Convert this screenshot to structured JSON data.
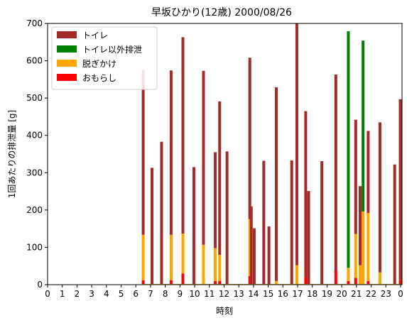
{
  "chart_data": {
    "type": "bar",
    "stacked": true,
    "title": "早坂ひかり(12歳) 2000/08/26",
    "xlabel": "時刻",
    "ylabel": "1回あたりの排泄量 [g]",
    "xlim": [
      0,
      24.1
    ],
    "ylim": [
      0,
      700
    ],
    "xticks": [
      0,
      1,
      2,
      3,
      4,
      5,
      6,
      7,
      8,
      9,
      10,
      11,
      12,
      13,
      14,
      15,
      16,
      17,
      18,
      19,
      20,
      21,
      22,
      23,
      24
    ],
    "xtick_labels": [
      "0",
      "1",
      "2",
      "3",
      "4",
      "5",
      "6",
      "7",
      "8",
      "9",
      "10",
      "11",
      "12",
      "13",
      "14",
      "15",
      "16",
      "17",
      "18",
      "19",
      "20",
      "21",
      "22",
      "23",
      "0"
    ],
    "yticks": [
      0,
      100,
      200,
      300,
      400,
      500,
      600,
      700
    ],
    "legend_position": "upper-left",
    "series": [
      {
        "name": "トイレ",
        "color": "#a52a2a"
      },
      {
        "name": "トイレ以外排泄",
        "color": "#008000"
      },
      {
        "name": "脱ぎかけ",
        "color": "#ffa500"
      },
      {
        "name": "おもらし",
        "color": "#ff0000"
      }
    ],
    "events": [
      {
        "time": 6.5,
        "おもらし": 12,
        "脱ぎかけ": 122,
        "トイレ以外排泄": 0,
        "トイレ": 440
      },
      {
        "time": 7.1,
        "おもらし": 0,
        "脱ぎかけ": 0,
        "トイレ以外排泄": 0,
        "トイレ": 313
      },
      {
        "time": 7.75,
        "おもらし": 0,
        "脱ぎかけ": 0,
        "トイレ以外排泄": 0,
        "トイレ": 383
      },
      {
        "time": 8.4,
        "おもらし": 12,
        "脱ぎかけ": 122,
        "トイレ以外排泄": 0,
        "トイレ": 440
      },
      {
        "time": 9.2,
        "おもらし": 30,
        "脱ぎかけ": 107,
        "トイレ以外排泄": 0,
        "トイレ": 526
      },
      {
        "time": 9.95,
        "おもらし": 0,
        "脱ぎかけ": 0,
        "トイレ以外排泄": 0,
        "トイレ": 315
      },
      {
        "time": 10.6,
        "おもらし": 0,
        "脱ぎかけ": 107,
        "トイレ以外排泄": 0,
        "トイレ": 466
      },
      {
        "time": 11.4,
        "おもらし": 10,
        "脱ぎかけ": 88,
        "トイレ以外排泄": 0,
        "トイレ": 257
      },
      {
        "time": 11.7,
        "おもらし": 10,
        "脱ぎかけ": 70,
        "トイレ以外排泄": 0,
        "トイレ": 411
      },
      {
        "time": 12.2,
        "おもらし": 0,
        "脱ぎかけ": 0,
        "トイレ以外排泄": 0,
        "トイレ": 357
      },
      {
        "time": 13.75,
        "おもらし": 23,
        "脱ぎかけ": 153,
        "トイレ以外排泄": 0,
        "トイレ": 432
      },
      {
        "time": 13.85,
        "おもらし": 0,
        "脱ぎかけ": 0,
        "トイレ以外排泄": 0,
        "トイレ": 210
      },
      {
        "time": 14.05,
        "おもらし": 0,
        "脱ぎかけ": 0,
        "トイレ以外排泄": 0,
        "トイレ": 151
      },
      {
        "time": 14.7,
        "おもらし": 0,
        "脱ぎかけ": 0,
        "トイレ以外排泄": 0,
        "トイレ": 332
      },
      {
        "time": 15.05,
        "おもらし": 0,
        "脱ぎかけ": 0,
        "トイレ以外排泄": 0,
        "トイレ": 156
      },
      {
        "time": 15.55,
        "おもらし": 0,
        "脱ぎかけ": 10,
        "トイレ以外排泄": 0,
        "トイレ": 519
      },
      {
        "time": 16.6,
        "おもらし": 0,
        "脱ぎかけ": 0,
        "トイレ以外排泄": 0,
        "トイレ": 333
      },
      {
        "time": 16.95,
        "おもらし": 0,
        "脱ぎかけ": 52,
        "トイレ以外排泄": 0,
        "トイレ": 648
      },
      {
        "time": 17.55,
        "おもらし": 20,
        "脱ぎかけ": 0,
        "トイレ以外排泄": 0,
        "トイレ": 445
      },
      {
        "time": 17.75,
        "おもらし": 0,
        "脱ぎかけ": 0,
        "トイレ以外排泄": 0,
        "トイレ": 251
      },
      {
        "time": 18.65,
        "おもらし": 0,
        "脱ぎかけ": 0,
        "トイレ以外排泄": 0,
        "トイレ": 331
      },
      {
        "time": 19.6,
        "おもらし": 38,
        "脱ぎかけ": 0,
        "トイレ以外排泄": 0,
        "トイレ": 525
      },
      {
        "time": 20.45,
        "おもらし": 10,
        "脱ぎかけ": 35,
        "トイレ以外排泄": 634,
        "トイレ": 0
      },
      {
        "time": 20.95,
        "おもらし": 18,
        "脱ぎかけ": 118,
        "トイレ以外排泄": 0,
        "トイレ": 306
      },
      {
        "time": 21.25,
        "おもらし": 0,
        "脱ぎかけ": 52,
        "トイレ以外排泄": 0,
        "トイレ": 212
      },
      {
        "time": 21.45,
        "おもらし": 0,
        "脱ぎかけ": 196,
        "トイレ以外排泄": 458,
        "トイレ": 0
      },
      {
        "time": 21.8,
        "おもらし": 10,
        "脱ぎかけ": 182,
        "トイレ以外排泄": 0,
        "トイレ": 220
      },
      {
        "time": 22.6,
        "おもらし": 0,
        "脱ぎかけ": 33,
        "トイレ以外排泄": 0,
        "トイレ": 402
      },
      {
        "time": 23.6,
        "おもらし": 0,
        "脱ぎかけ": 0,
        "トイレ以外排泄": 0,
        "トイレ": 322
      },
      {
        "time": 23.98,
        "おもらし": 12,
        "脱ぎかけ": 0,
        "トイレ以外排泄": 0,
        "トイレ": 485
      }
    ]
  }
}
